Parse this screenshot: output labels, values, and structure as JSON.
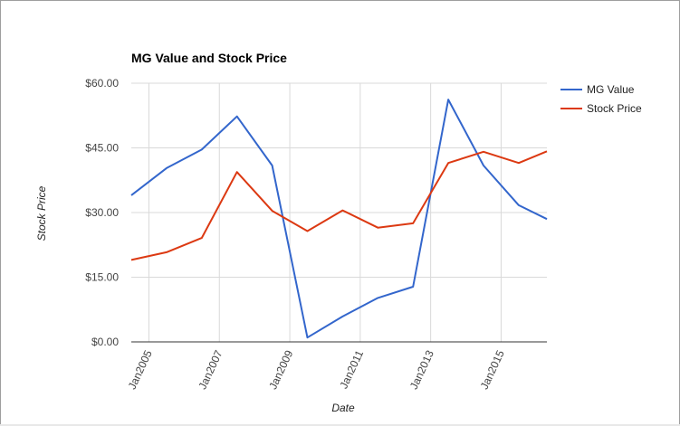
{
  "chart_data": {
    "type": "line",
    "title": "MG Value and Stock Price",
    "xlabel": "Date",
    "ylabel": "Stock Price",
    "x": [
      2004.5,
      2005.5,
      2006.5,
      2007.5,
      2008.5,
      2009.5,
      2010.5,
      2011.5,
      2012.5,
      2013.5,
      2014.5,
      2015.5,
      2016.3
    ],
    "x_ticks": [
      {
        "value": 2005,
        "label": "Jan2005"
      },
      {
        "value": 2007,
        "label": "Jan2007"
      },
      {
        "value": 2009,
        "label": "Jan2009"
      },
      {
        "value": 2011,
        "label": "Jan2011"
      },
      {
        "value": 2013,
        "label": "Jan2013"
      },
      {
        "value": 2015,
        "label": "Jan2015"
      }
    ],
    "xlim": [
      2004.5,
      2016.3
    ],
    "y_ticks": [
      {
        "value": 0,
        "label": "$0.00"
      },
      {
        "value": 15,
        "label": "$15.00"
      },
      {
        "value": 30,
        "label": "$30.00"
      },
      {
        "value": 45,
        "label": "$45.00"
      },
      {
        "value": 60,
        "label": "$60.00"
      }
    ],
    "ylim": [
      0,
      60
    ],
    "grid": true,
    "legend_position": "right",
    "series": [
      {
        "name": "MG Value",
        "color": "#3366cc",
        "values": [
          34.0,
          40.3,
          44.6,
          52.3,
          40.9,
          1.0,
          5.9,
          10.2,
          12.8,
          56.2,
          40.9,
          31.7,
          28.5
        ]
      },
      {
        "name": "Stock Price",
        "color": "#dc3912",
        "values": [
          19.0,
          20.8,
          24.1,
          39.4,
          30.4,
          25.7,
          30.5,
          26.5,
          27.5,
          41.5,
          44.1,
          41.5,
          44.2
        ]
      }
    ]
  }
}
